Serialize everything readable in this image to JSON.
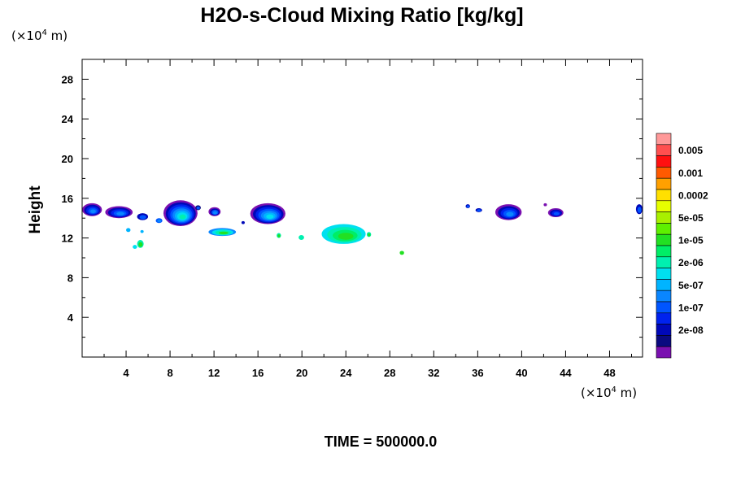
{
  "chart_data": {
    "type": "heatmap",
    "title": "H2O-s-Cloud Mixing Ratio [kg/kg]",
    "ylabel": "Height",
    "xlabel": "",
    "x_unit": {
      "prefix": "(×10",
      "exp": "4",
      "suffix": " m)"
    },
    "y_unit": {
      "prefix": "(×10",
      "exp": "4",
      "suffix": " m)"
    },
    "footer": "TIME = 500000.0",
    "xlim": [
      0,
      51
    ],
    "ylim": [
      0,
      30
    ],
    "x_ticks": [
      "4",
      "8",
      "12",
      "16",
      "20",
      "24",
      "28",
      "32",
      "36",
      "40",
      "44",
      "48"
    ],
    "y_ticks": [
      "4",
      "8",
      "12",
      "16",
      "20",
      "24",
      "28"
    ],
    "legend": {
      "levels": [
        {
          "label": "",
          "color": "#ff9999"
        },
        {
          "label": "0.005",
          "color": "#ff5050"
        },
        {
          "label": "",
          "color": "#ff1010"
        },
        {
          "label": "0.001",
          "color": "#ff5a00"
        },
        {
          "label": "",
          "color": "#ffa000"
        },
        {
          "label": "0.0002",
          "color": "#ffe000"
        },
        {
          "label": "",
          "color": "#e6ff00"
        },
        {
          "label": "5e-05",
          "color": "#a8f000"
        },
        {
          "label": "",
          "color": "#5ef000"
        },
        {
          "label": "1e-05",
          "color": "#22e022"
        },
        {
          "label": "",
          "color": "#00ee66"
        },
        {
          "label": "2e-06",
          "color": "#00f0b0"
        },
        {
          "label": "",
          "color": "#00e0f0"
        },
        {
          "label": "5e-07",
          "color": "#00b4ff"
        },
        {
          "label": "",
          "color": "#0a86ff"
        },
        {
          "label": "1e-07",
          "color": "#0055ff"
        },
        {
          "label": "",
          "color": "#0022ee"
        },
        {
          "label": "2e-08",
          "color": "#0008b8"
        },
        {
          "label": "",
          "color": "#0a0a80"
        },
        {
          "label": "",
          "color": "#7a10b0"
        }
      ]
    },
    "cloud_patches": [
      {
        "x": [
          0.0,
          1.8
        ],
        "y": [
          14.2,
          15.5
        ],
        "layers": [
          "#7a10b0",
          "#0008b8",
          "#0022ee",
          "#0055ff",
          "#0a86ff"
        ]
      },
      {
        "x": [
          2.1,
          4.6
        ],
        "y": [
          14.0,
          15.2
        ],
        "layers": [
          "#7a10b0",
          "#0008b8",
          "#0022ee",
          "#0055ff",
          "#0a86ff"
        ]
      },
      {
        "x": [
          5.0,
          6.0
        ],
        "y": [
          13.8,
          14.5
        ],
        "layers": [
          "#0008b8",
          "#0055ff"
        ]
      },
      {
        "x": [
          6.7,
          7.3
        ],
        "y": [
          13.5,
          14.0
        ],
        "layers": [
          "#0055ff",
          "#0a86ff"
        ]
      },
      {
        "x": [
          7.4,
          10.5
        ],
        "y": [
          13.2,
          15.8
        ],
        "layers": [
          "#7a10b0",
          "#0008b8",
          "#0022ee",
          "#0055ff",
          "#0a86ff",
          "#00b4ff",
          "#00e0f0",
          "#00f0b0"
        ]
      },
      {
        "x": [
          11.5,
          12.6
        ],
        "y": [
          14.2,
          15.1
        ],
        "layers": [
          "#7a10b0",
          "#0008b8",
          "#0055ff",
          "#0a86ff"
        ]
      },
      {
        "x": [
          11.5,
          14.0
        ],
        "y": [
          12.2,
          13.0
        ],
        "layers": [
          "#0a86ff",
          "#00e0f0",
          "#00f0b0",
          "#22e022"
        ]
      },
      {
        "x": [
          15.3,
          18.5
        ],
        "y": [
          13.4,
          15.5
        ],
        "layers": [
          "#7a10b0",
          "#0008b8",
          "#0022ee",
          "#0055ff",
          "#0a86ff",
          "#00b4ff",
          "#00e0f0"
        ]
      },
      {
        "x": [
          4.0,
          4.4
        ],
        "y": [
          12.6,
          13.0
        ],
        "layers": [
          "#00b4ff"
        ]
      },
      {
        "x": [
          5.0,
          5.6
        ],
        "y": [
          11.0,
          11.8
        ],
        "layers": [
          "#00f0b0",
          "#22e022"
        ]
      },
      {
        "x": [
          4.6,
          5.0
        ],
        "y": [
          10.9,
          11.3
        ],
        "layers": [
          "#00e0f0"
        ]
      },
      {
        "x": [
          5.3,
          5.6
        ],
        "y": [
          12.5,
          12.8
        ],
        "layers": [
          "#00b4ff"
        ]
      },
      {
        "x": [
          17.7,
          18.1
        ],
        "y": [
          12.0,
          12.5
        ],
        "layers": [
          "#00f0b0",
          "#22e022"
        ]
      },
      {
        "x": [
          19.7,
          20.2
        ],
        "y": [
          11.8,
          12.3
        ],
        "layers": [
          "#00f0b0"
        ]
      },
      {
        "x": [
          21.8,
          25.8
        ],
        "y": [
          11.4,
          13.4
        ],
        "layers": [
          "#00e0f0",
          "#00f0b0",
          "#00ee66",
          "#22e022"
        ]
      },
      {
        "x": [
          25.9,
          26.3
        ],
        "y": [
          12.1,
          12.6
        ],
        "layers": [
          "#00f0b0",
          "#22e022"
        ]
      },
      {
        "x": [
          28.9,
          29.3
        ],
        "y": [
          10.3,
          10.7
        ],
        "layers": [
          "#22e022"
        ]
      },
      {
        "x": [
          34.9,
          35.3
        ],
        "y": [
          15.0,
          15.4
        ],
        "layers": [
          "#0008b8",
          "#0055ff"
        ]
      },
      {
        "x": [
          35.8,
          36.4
        ],
        "y": [
          14.6,
          15.0
        ],
        "layers": [
          "#0008b8",
          "#0055ff"
        ]
      },
      {
        "x": [
          37.6,
          40.0
        ],
        "y": [
          13.8,
          15.4
        ],
        "layers": [
          "#7a10b0",
          "#0008b8",
          "#0022ee",
          "#0055ff",
          "#0a86ff"
        ]
      },
      {
        "x": [
          42.4,
          43.8
        ],
        "y": [
          14.1,
          15.0
        ],
        "layers": [
          "#7a10b0",
          "#0008b8",
          "#0022ee",
          "#0055ff"
        ]
      },
      {
        "x": [
          42.0,
          42.3
        ],
        "y": [
          15.2,
          15.5
        ],
        "layers": [
          "#7a10b0"
        ]
      },
      {
        "x": [
          50.4,
          51.0
        ],
        "y": [
          14.4,
          15.4
        ],
        "layers": [
          "#0008b8",
          "#0055ff"
        ]
      },
      {
        "x": [
          14.5,
          14.8
        ],
        "y": [
          13.4,
          13.7
        ],
        "layers": [
          "#0008b8"
        ]
      },
      {
        "x": [
          10.3,
          10.8
        ],
        "y": [
          14.8,
          15.3
        ],
        "layers": [
          "#0a0a80",
          "#0055ff"
        ]
      }
    ]
  }
}
